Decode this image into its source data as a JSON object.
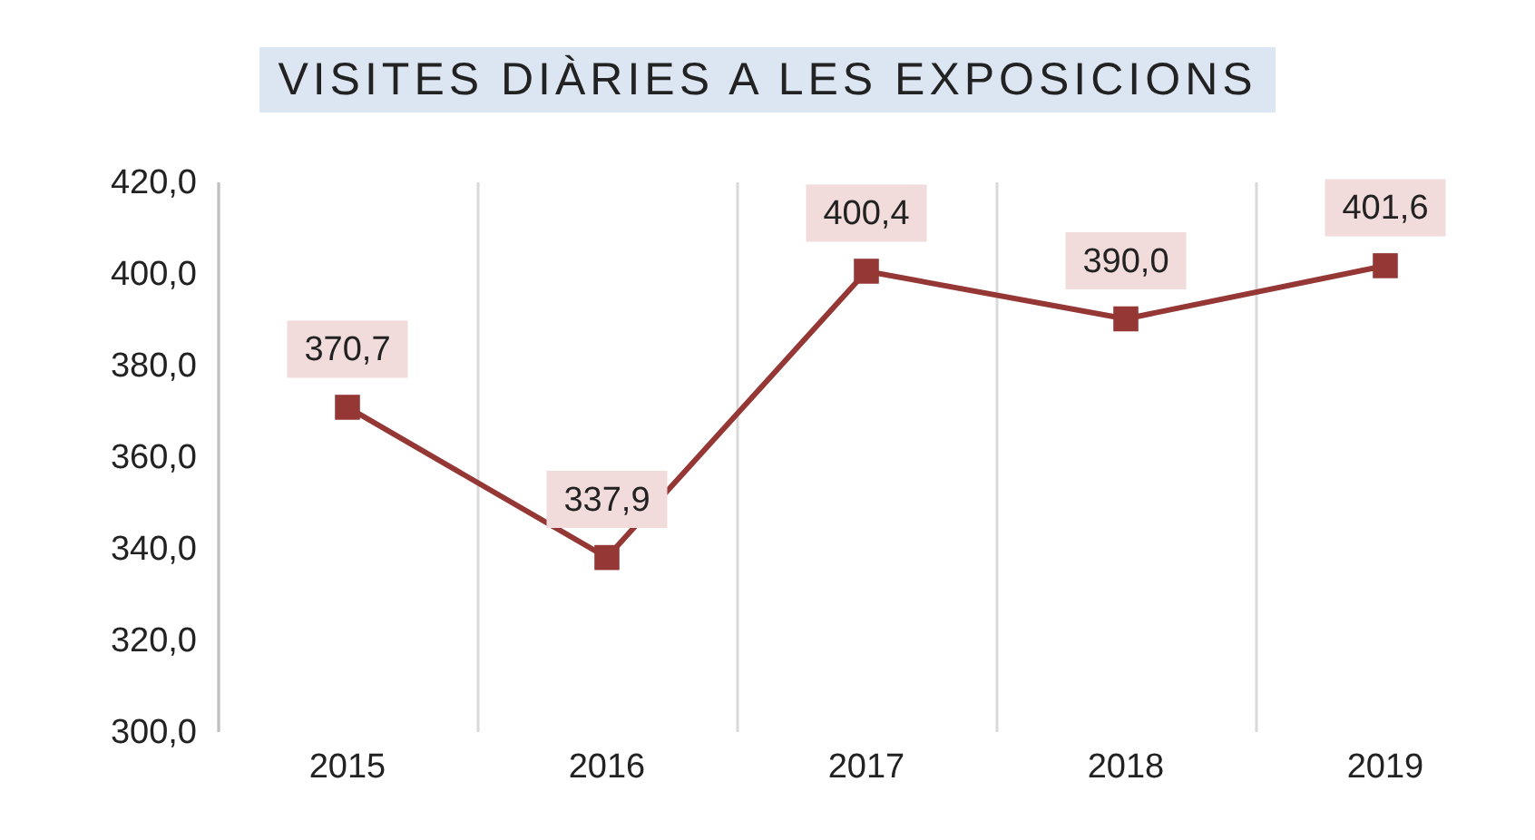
{
  "chart_data": {
    "type": "line",
    "title": "VISITES DIÀRIES A LES EXPOSICIONS",
    "categories": [
      "2015",
      "2016",
      "2017",
      "2018",
      "2019"
    ],
    "series": [
      {
        "color": "#953735",
        "values": [
          370.7,
          337.9,
          400.4,
          390.0,
          401.6
        ],
        "value_labels": [
          "370,7",
          "337,9",
          "400,4",
          "390,0",
          "401,6"
        ]
      }
    ],
    "ylim": [
      300,
      420
    ],
    "yticks": [
      {
        "value": 300,
        "label": "300,0"
      },
      {
        "value": 320,
        "label": "320,0"
      },
      {
        "value": 340,
        "label": "340,0"
      },
      {
        "value": 360,
        "label": "360,0"
      },
      {
        "value": 380,
        "label": "380,0"
      },
      {
        "value": 400,
        "label": "400,0"
      },
      {
        "value": 420,
        "label": "420,0"
      }
    ],
    "grid": "x",
    "marker": "square",
    "line_style": "solid"
  }
}
